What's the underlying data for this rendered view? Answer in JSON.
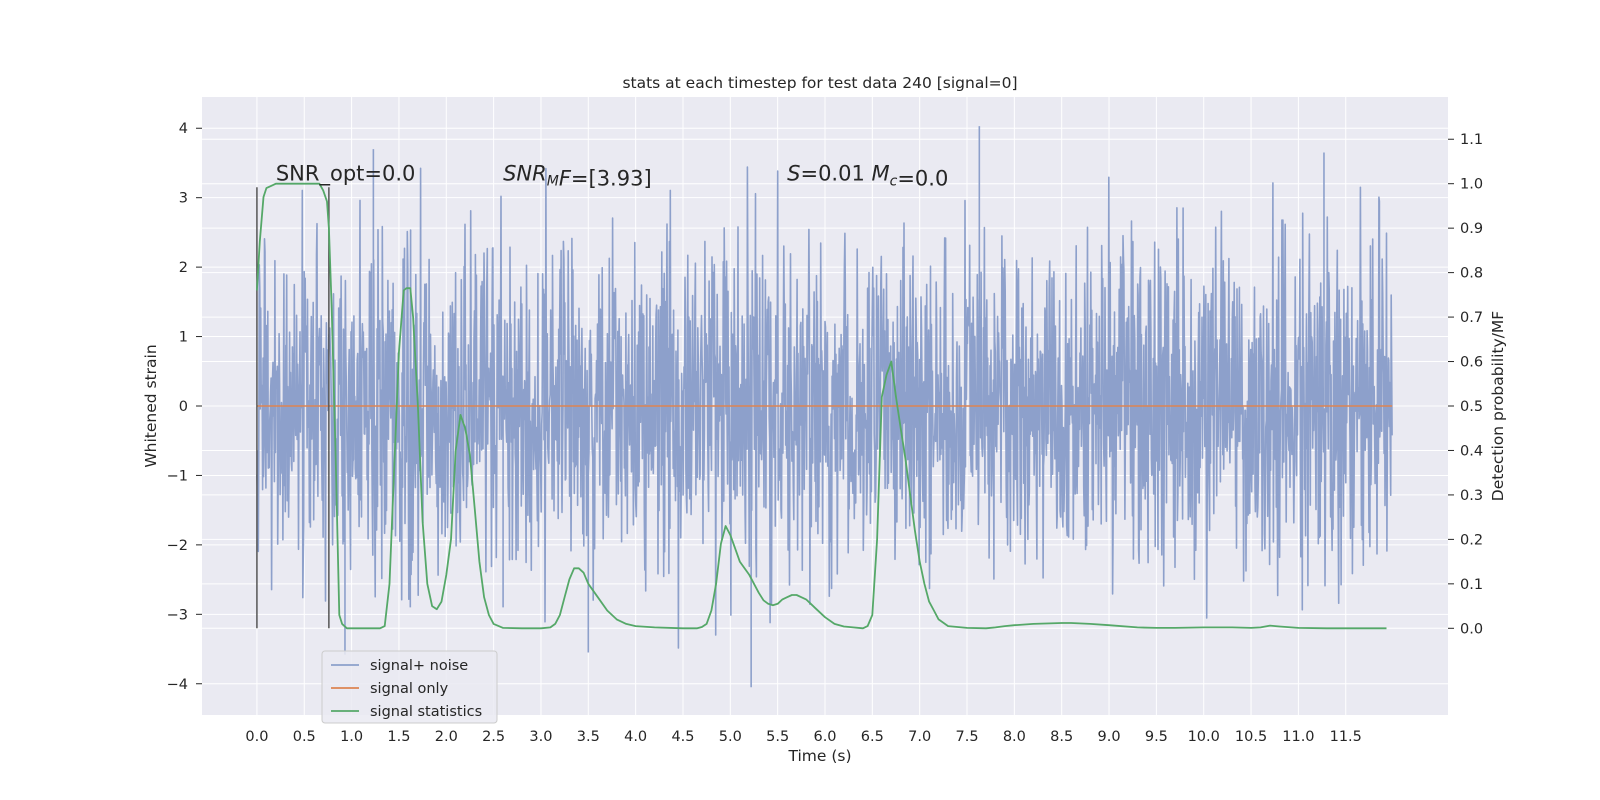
{
  "chart_data": {
    "type": "line",
    "title": "stats at each timestep for test data 240 [signal=0]",
    "xlabel": "Time (s)",
    "ylabel": "Whitened strain",
    "y2label": "Detection probability/MF",
    "xlim": [
      -0.58,
      12.58
    ],
    "ylim": [
      -4.45,
      4.45
    ],
    "y2lim": [
      -0.195,
      1.195
    ],
    "x_ticks": [
      0.0,
      0.5,
      1.0,
      1.5,
      2.0,
      2.5,
      3.0,
      3.5,
      4.0,
      4.5,
      5.0,
      5.5,
      6.0,
      6.5,
      7.0,
      7.5,
      8.0,
      8.5,
      9.0,
      9.5,
      10.0,
      10.5,
      11.0,
      11.5
    ],
    "x_tick_labels": [
      "0.0",
      "0.5",
      "1.0",
      "1.5",
      "2.0",
      "2.5",
      "3.0",
      "3.5",
      "4.0",
      "4.5",
      "5.0",
      "5.5",
      "6.0",
      "6.5",
      "7.0",
      "7.5",
      "8.0",
      "8.5",
      "9.0",
      "9.5",
      "10.0",
      "10.5",
      "11.0",
      "11.5"
    ],
    "y_ticks": [
      -4,
      -3,
      -2,
      -1,
      0,
      1,
      2,
      3,
      4
    ],
    "y_tick_labels": [
      "−4",
      "−3",
      "−2",
      "−1",
      "0",
      "1",
      "2",
      "3",
      "4"
    ],
    "y2_ticks": [
      0.0,
      0.1,
      0.2,
      0.3,
      0.4,
      0.5,
      0.6,
      0.7,
      0.8,
      0.9,
      1.0,
      1.1
    ],
    "y2_tick_labels": [
      "0.0",
      "0.1",
      "0.2",
      "0.3",
      "0.4",
      "0.5",
      "0.6",
      "0.7",
      "0.8",
      "0.9",
      "1.0",
      "1.1"
    ],
    "grid": true,
    "legend_position": "lower-left",
    "colors": {
      "background": "#eaeaf2",
      "grid": "#ffffff",
      "signal_noise": "#8da0cb",
      "signal_only": "#dd8452",
      "signal_statistics": "#55a868",
      "marker_lines": "#555555"
    },
    "series": [
      {
        "name": "signal+ noise",
        "kind": "noise",
        "x_range": [
          0.0,
          11.99
        ],
        "typical_envelope": [
          -1.9,
          1.9
        ],
        "max_peak_envelope": [
          -4.1,
          4.05
        ],
        "spikes": [
          [
            1.23,
            3.7
          ],
          [
            7.63,
            4.03
          ],
          [
            11.27,
            3.65
          ],
          [
            0.93,
            -3.58
          ],
          [
            3.5,
            -3.55
          ],
          [
            5.22,
            -4.05
          ],
          [
            1.62,
            -2.9
          ],
          [
            2.6,
            -2.9
          ]
        ]
      },
      {
        "name": "signal only",
        "kind": "flat",
        "x": [
          0.0,
          11.99
        ],
        "y": [
          0.0,
          0.0
        ]
      },
      {
        "name": "signal statistics",
        "kind": "probability",
        "x": [
          0.0,
          0.03,
          0.07,
          0.1,
          0.15,
          0.2,
          0.3,
          0.4,
          0.5,
          0.55,
          0.6,
          0.66,
          0.7,
          0.74,
          0.76,
          0.79,
          0.83,
          0.87,
          0.9,
          0.95,
          1.0,
          1.1,
          1.2,
          1.3,
          1.35,
          1.4,
          1.45,
          1.5,
          1.55,
          1.58,
          1.62,
          1.65,
          1.7,
          1.75,
          1.8,
          1.85,
          1.9,
          1.95,
          2.0,
          2.05,
          2.1,
          2.15,
          2.2,
          2.25,
          2.3,
          2.35,
          2.4,
          2.45,
          2.5,
          2.6,
          2.8,
          3.0,
          3.1,
          3.15,
          3.2,
          3.25,
          3.3,
          3.35,
          3.4,
          3.45,
          3.5,
          3.6,
          3.7,
          3.8,
          3.9,
          4.0,
          4.2,
          4.5,
          4.65,
          4.7,
          4.75,
          4.8,
          4.85,
          4.9,
          4.95,
          5.0,
          5.05,
          5.1,
          5.2,
          5.3,
          5.35,
          5.4,
          5.45,
          5.5,
          5.55,
          5.6,
          5.65,
          5.7,
          5.75,
          5.8,
          5.85,
          5.9,
          6.0,
          6.1,
          6.2,
          6.3,
          6.4,
          6.45,
          6.5,
          6.55,
          6.6,
          6.65,
          6.7,
          6.75,
          6.8,
          6.85,
          6.9,
          6.95,
          7.0,
          7.05,
          7.1,
          7.15,
          7.2,
          7.3,
          7.5,
          7.7,
          7.8,
          7.9,
          8.0,
          8.2,
          8.5,
          8.6,
          8.8,
          9.0,
          9.3,
          9.5,
          9.7,
          10.0,
          10.3,
          10.5,
          10.6,
          10.65,
          10.7,
          10.8,
          11.0,
          11.3,
          11.6,
          11.93
        ],
        "y": [
          0.76,
          0.87,
          0.97,
          0.99,
          0.995,
          1.0,
          1.0,
          1.0,
          1.0,
          1.0,
          1.0,
          1.0,
          0.985,
          0.96,
          0.9,
          0.72,
          0.4,
          0.03,
          0.01,
          0.0,
          0.0,
          0.0,
          0.0,
          0.0,
          0.005,
          0.1,
          0.36,
          0.62,
          0.76,
          0.765,
          0.765,
          0.7,
          0.5,
          0.24,
          0.1,
          0.05,
          0.043,
          0.06,
          0.12,
          0.2,
          0.4,
          0.48,
          0.45,
          0.39,
          0.27,
          0.15,
          0.07,
          0.03,
          0.01,
          0.001,
          0.0,
          0.0,
          0.002,
          0.01,
          0.03,
          0.07,
          0.11,
          0.135,
          0.135,
          0.125,
          0.1,
          0.07,
          0.04,
          0.02,
          0.01,
          0.005,
          0.002,
          0.0,
          0.0,
          0.003,
          0.01,
          0.04,
          0.1,
          0.19,
          0.23,
          0.21,
          0.18,
          0.15,
          0.12,
          0.08,
          0.063,
          0.055,
          0.052,
          0.055,
          0.065,
          0.07,
          0.075,
          0.075,
          0.07,
          0.065,
          0.055,
          0.045,
          0.025,
          0.01,
          0.004,
          0.002,
          0.0,
          0.005,
          0.03,
          0.2,
          0.52,
          0.57,
          0.6,
          0.52,
          0.45,
          0.38,
          0.3,
          0.22,
          0.15,
          0.1,
          0.06,
          0.04,
          0.02,
          0.005,
          0.001,
          0.0,
          0.002,
          0.005,
          0.007,
          0.01,
          0.012,
          0.012,
          0.01,
          0.007,
          0.002,
          0.001,
          0.001,
          0.002,
          0.002,
          0.001,
          0.002,
          0.004,
          0.006,
          0.004,
          0.001,
          0.0,
          0.0,
          0.0
        ]
      }
    ],
    "markers": [
      0.0,
      0.76
    ],
    "marker_range": [
      -3.2,
      3.15
    ],
    "annotations": [
      {
        "text_parts": [
          {
            "t": "SNR_opt=0.0"
          }
        ],
        "x": 0.2,
        "y": 3.25
      },
      {
        "text_parts": [
          {
            "t": "SNR",
            "i": true
          },
          {
            "t": "M",
            "i": true,
            "sub": true
          },
          {
            "t": "F",
            "i": true
          },
          {
            "t": "=[3.93]"
          }
        ],
        "x": 2.6,
        "y": 3.25
      },
      {
        "text_parts": [
          {
            "t": "S",
            "i": true
          },
          {
            "t": "=0.01   "
          },
          {
            "t": "M",
            "i": true
          },
          {
            "t": "c",
            "i": true,
            "sub": true
          },
          {
            "t": "=0.0"
          }
        ],
        "x": 5.6,
        "y": 3.25
      }
    ],
    "legend": [
      {
        "label": "signal+ noise",
        "color": "#8da0cb"
      },
      {
        "label": "signal only",
        "color": "#dd8452"
      },
      {
        "label": "signal statistics",
        "color": "#55a868"
      }
    ]
  }
}
